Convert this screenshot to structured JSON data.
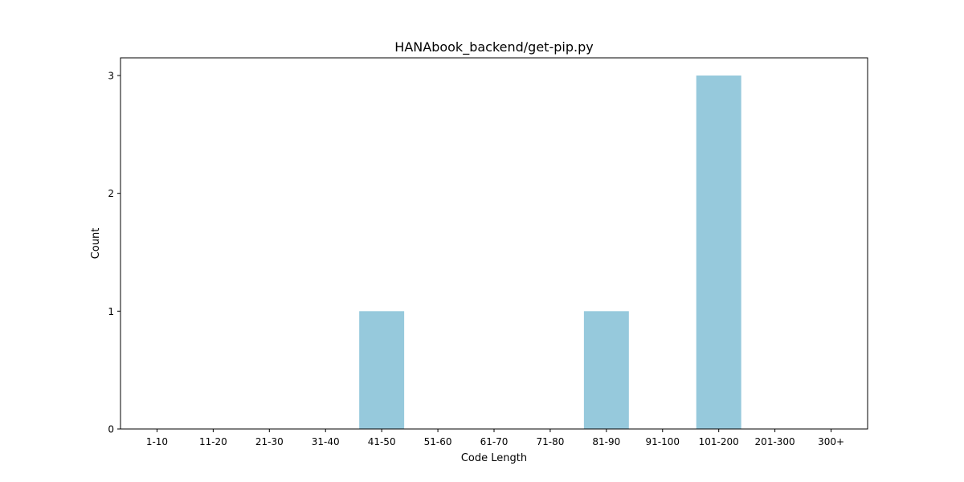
{
  "chart_data": {
    "type": "bar",
    "title": "HANAbook_backend/get-pip.py",
    "xlabel": "Code Length",
    "ylabel": "Count",
    "categories": [
      "1-10",
      "11-20",
      "21-30",
      "31-40",
      "41-50",
      "51-60",
      "61-70",
      "71-80",
      "81-90",
      "91-100",
      "101-200",
      "201-300",
      "300+"
    ],
    "values": [
      0,
      0,
      0,
      0,
      1,
      0,
      0,
      0,
      1,
      0,
      3,
      0,
      0
    ],
    "yticks": [
      "0",
      "1",
      "2",
      "3"
    ],
    "ylim": [
      0,
      3.15
    ],
    "bar_color": "#96c9dc",
    "grid": false,
    "legend": "none"
  }
}
